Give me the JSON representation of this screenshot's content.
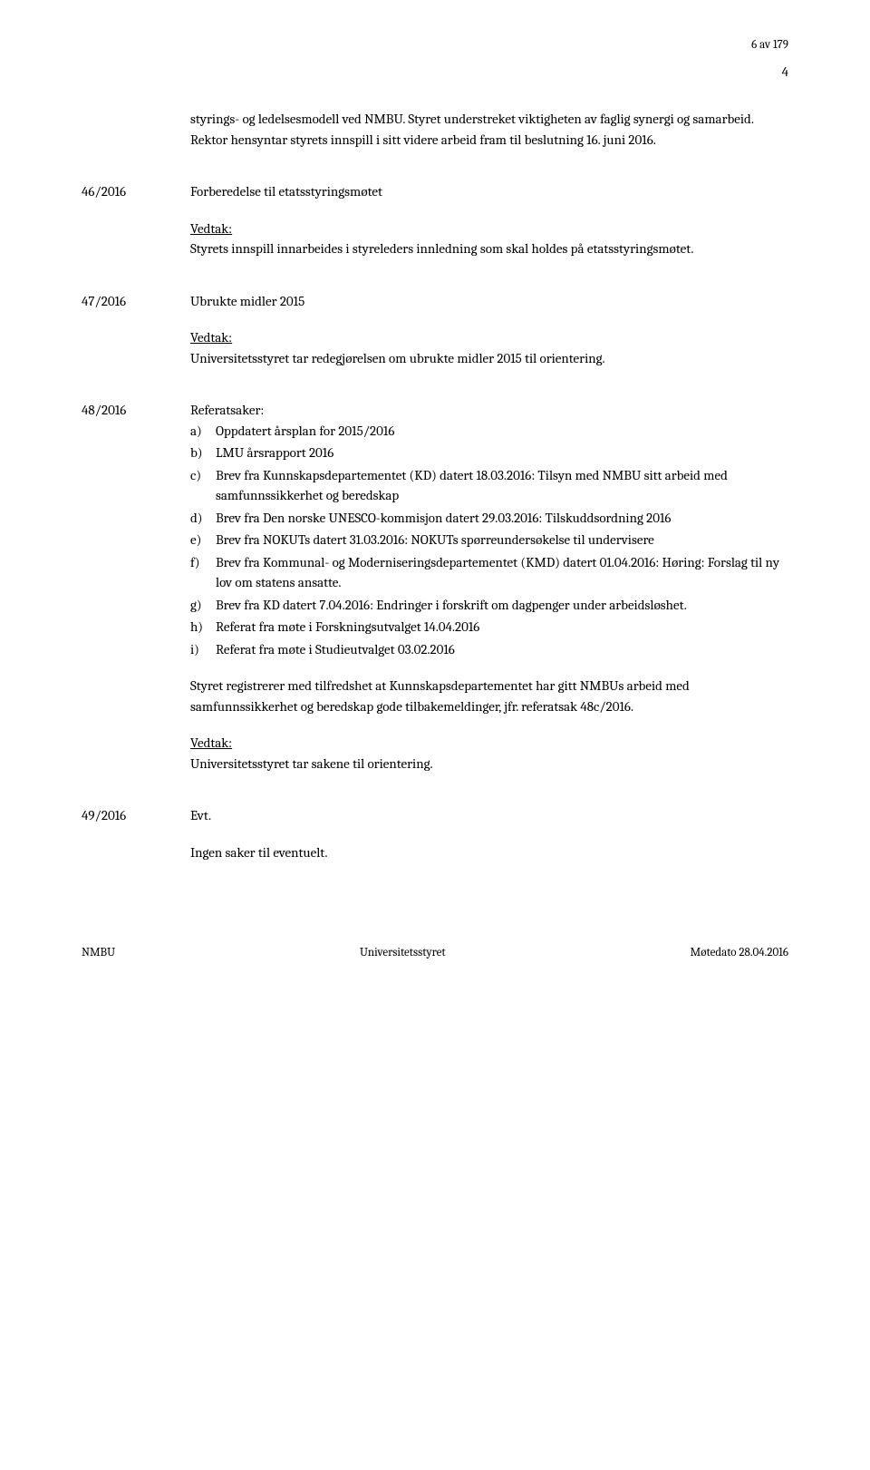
{
  "header": {
    "page_marker": "6 av 179",
    "page_number": "4"
  },
  "intro": {
    "text": "styrings- og ledelsesmodell ved NMBU. Styret understreket viktigheten av faglig synergi og samarbeid. Rektor hensyntar styrets innspill i sitt videre arbeid fram til beslutning 16. juni 2016."
  },
  "sections": {
    "s46": {
      "number": "46/2016",
      "title": "Forberedelse til etatsstyringsmøtet",
      "vedtak_label": "Vedtak:",
      "vedtak_text": "Styrets innspill innarbeides i styreleders innledning som skal holdes på etatsstyringsmøtet."
    },
    "s47": {
      "number": "47/2016",
      "title": "Ubrukte midler 2015",
      "vedtak_label": "Vedtak:",
      "vedtak_text": "Universitetsstyret tar redegjørelsen om ubrukte midler 2015 til orientering."
    },
    "s48": {
      "number": "48/2016",
      "title": "Referatsaker:",
      "items": {
        "a": {
          "marker": "a)",
          "text": "Oppdatert årsplan for 2015/2016"
        },
        "b": {
          "marker": "b)",
          "text": "LMU årsrapport 2016"
        },
        "c": {
          "marker": "c)",
          "text": "Brev fra Kunnskapsdepartementet (KD) datert 18.03.2016: Tilsyn med NMBU sitt arbeid med samfunnssikkerhet og beredskap"
        },
        "d": {
          "marker": "d)",
          "text": "Brev fra Den norske UNESCO-kommisjon datert 29.03.2016: Tilskuddsordning 2016"
        },
        "e": {
          "marker": "e)",
          "text": "Brev fra NOKUTs datert 31.03.2016: NOKUTs spørreundersøkelse til undervisere"
        },
        "f": {
          "marker": "f)",
          "text": "Brev fra Kommunal- og Moderniseringsdepartementet (KMD) datert 01.04.2016: Høring: Forslag til ny lov om statens ansatte."
        },
        "g": {
          "marker": "g)",
          "text": "Brev fra KD datert 7.04.2016: Endringer i forskrift om dagpenger under arbeidsløshet."
        },
        "h": {
          "marker": "h)",
          "text": "Referat fra møte i Forskningsutvalget 14.04.2016"
        },
        "i": {
          "marker": "i)",
          "text": "Referat fra møte i Studieutvalget 03.02.2016"
        }
      },
      "para": "Styret registrerer med tilfredshet at Kunnskapsdepartementet har gitt NMBUs arbeid med samfunnssikkerhet og beredskap gode tilbakemeldinger, jfr. referatsak 48c/2016.",
      "vedtak_label": "Vedtak:",
      "vedtak_text": "Universitetsstyret tar sakene til orientering."
    },
    "s49": {
      "number": "49/2016",
      "title": "Evt.",
      "text": "Ingen saker til eventuelt."
    }
  },
  "footer": {
    "left": "NMBU",
    "center": "Universitetsstyret",
    "right": "Møtedato 28.04.2016"
  }
}
